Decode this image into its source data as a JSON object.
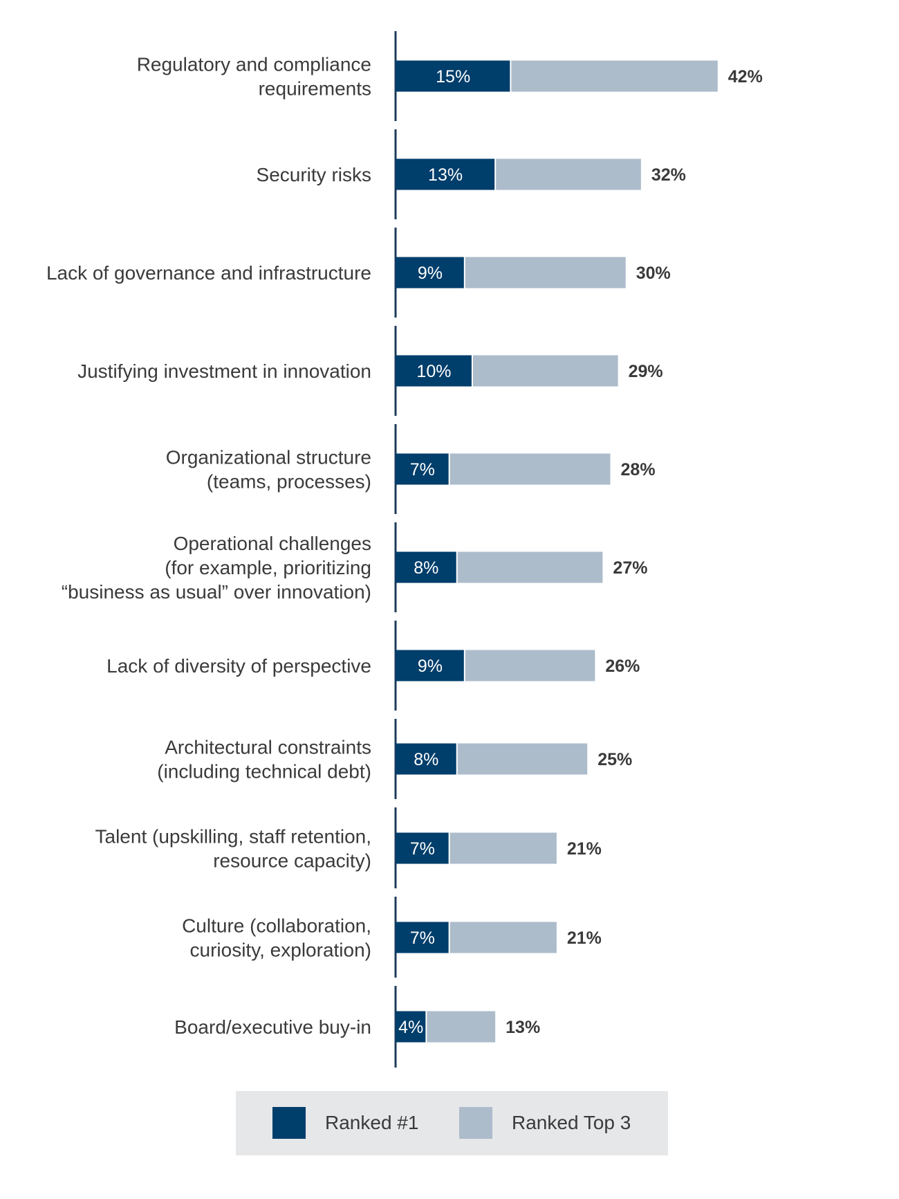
{
  "chart_data": {
    "type": "bar",
    "orientation": "horizontal",
    "categories": [
      [
        "Regulatory and compliance",
        "requirements"
      ],
      [
        "Security risks"
      ],
      [
        "Lack of governance and infrastructure"
      ],
      [
        "Justifying investment in innovation"
      ],
      [
        "Organizational structure",
        "(teams, processes)"
      ],
      [
        "Operational challenges",
        "(for example, prioritizing",
        "“business as usual” over innovation)"
      ],
      [
        "Lack of diversity of perspective"
      ],
      [
        "Architectural constraints",
        "(including technical debt)"
      ],
      [
        "Talent (upskilling, staff retention,",
        "resource capacity)"
      ],
      [
        "Culture (collaboration,",
        "curiosity, exploration)"
      ],
      [
        "Board/executive buy-in"
      ]
    ],
    "series": [
      {
        "name": "Ranked #1",
        "color": "#003e6b",
        "values": [
          15,
          13,
          9,
          10,
          7,
          8,
          9,
          8,
          7,
          7,
          4
        ],
        "labels": [
          "15%",
          "13%",
          "9%",
          "10%",
          "7%",
          "8%",
          "9%",
          "8%",
          "7%",
          "7%",
          "4%"
        ]
      },
      {
        "name": "Ranked Top 3",
        "color": "#adbccb",
        "values": [
          42,
          32,
          30,
          29,
          28,
          27,
          26,
          25,
          21,
          21,
          13
        ],
        "labels": [
          "42%",
          "32%",
          "30%",
          "29%",
          "28%",
          "27%",
          "26%",
          "25%",
          "21%",
          "21%",
          "13%"
        ]
      }
    ],
    "xlim": [
      0,
      42
    ],
    "grid": false,
    "legend_position": "bottom"
  }
}
